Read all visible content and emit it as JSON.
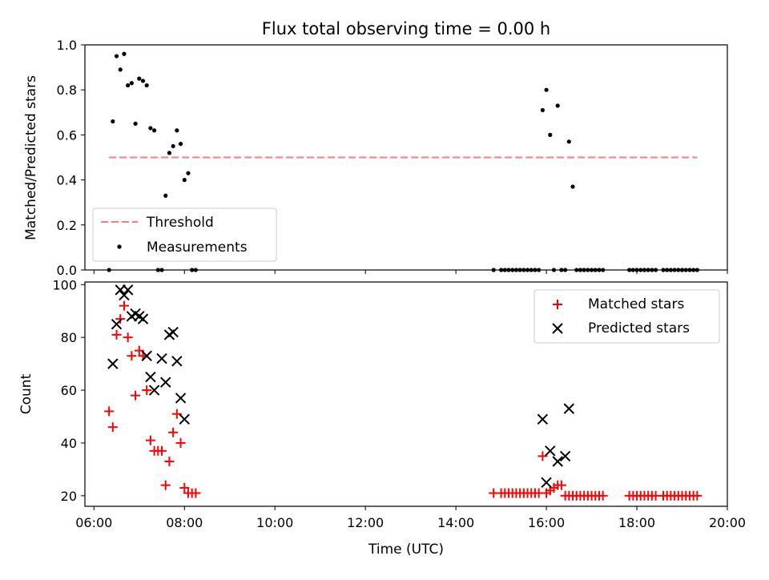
{
  "chart_data": [
    {
      "type": "scatter",
      "title": "Flux total observing time = 0.00 h",
      "xlabel": "",
      "ylabel": "Matched/Predicted stars",
      "xlim": [
        "05:48",
        "20:00"
      ],
      "ylim": [
        0,
        1.0
      ],
      "yticks": [
        "0.0",
        "0.2",
        "0.4",
        "0.6",
        "0.8",
        "1.0"
      ],
      "xticks": [
        "06:00",
        "08:00",
        "10:00",
        "12:00",
        "14:00",
        "16:00",
        "18:00",
        "20:00"
      ],
      "legend": {
        "placement": "lower-left",
        "entries": [
          "Threshold",
          "Measurements"
        ]
      },
      "threshold": {
        "name": "Threshold",
        "value": 0.5,
        "x_start": "06:20",
        "x_end": "19:20",
        "color": "#f08080"
      },
      "series": [
        {
          "name": "Measurements",
          "color": "#000000",
          "points": [
            [
              "06:20",
              0.0
            ],
            [
              "06:25",
              0.66
            ],
            [
              "06:30",
              0.95
            ],
            [
              "06:35",
              0.89
            ],
            [
              "06:40",
              0.96
            ],
            [
              "06:45",
              0.82
            ],
            [
              "06:50",
              0.83
            ],
            [
              "06:55",
              0.65
            ],
            [
              "07:00",
              0.85
            ],
            [
              "07:05",
              0.84
            ],
            [
              "07:10",
              0.82
            ],
            [
              "07:15",
              0.63
            ],
            [
              "07:20",
              0.62
            ],
            [
              "07:25",
              0.0
            ],
            [
              "07:30",
              0.0
            ],
            [
              "07:35",
              0.33
            ],
            [
              "07:40",
              0.52
            ],
            [
              "07:45",
              0.55
            ],
            [
              "07:50",
              0.62
            ],
            [
              "07:55",
              0.56
            ],
            [
              "08:00",
              0.4
            ],
            [
              "08:05",
              0.43
            ],
            [
              "08:10",
              0.0
            ],
            [
              "08:15",
              0.0
            ],
            [
              "14:50",
              0.0
            ],
            [
              "15:00",
              0.0
            ],
            [
              "15:05",
              0.0
            ],
            [
              "15:10",
              0.0
            ],
            [
              "15:15",
              0.0
            ],
            [
              "15:20",
              0.0
            ],
            [
              "15:25",
              0.0
            ],
            [
              "15:30",
              0.0
            ],
            [
              "15:35",
              0.0
            ],
            [
              "15:40",
              0.0
            ],
            [
              "15:45",
              0.0
            ],
            [
              "15:50",
              0.0
            ],
            [
              "15:55",
              0.71
            ],
            [
              "16:00",
              0.8
            ],
            [
              "16:05",
              0.6
            ],
            [
              "16:10",
              0.0
            ],
            [
              "16:15",
              0.73
            ],
            [
              "16:20",
              0.0
            ],
            [
              "16:25",
              0.0
            ],
            [
              "16:30",
              0.57
            ],
            [
              "16:35",
              0.37
            ],
            [
              "16:40",
              0.0
            ],
            [
              "16:45",
              0.0
            ],
            [
              "16:50",
              0.0
            ],
            [
              "16:55",
              0.0
            ],
            [
              "17:00",
              0.0
            ],
            [
              "17:05",
              0.0
            ],
            [
              "17:10",
              0.0
            ],
            [
              "17:15",
              0.0
            ],
            [
              "17:50",
              0.0
            ],
            [
              "17:55",
              0.0
            ],
            [
              "18:00",
              0.0
            ],
            [
              "18:05",
              0.0
            ],
            [
              "18:10",
              0.0
            ],
            [
              "18:15",
              0.0
            ],
            [
              "18:20",
              0.0
            ],
            [
              "18:25",
              0.0
            ],
            [
              "18:35",
              0.0
            ],
            [
              "18:40",
              0.0
            ],
            [
              "18:45",
              0.0
            ],
            [
              "18:50",
              0.0
            ],
            [
              "18:55",
              0.0
            ],
            [
              "19:00",
              0.0
            ],
            [
              "19:05",
              0.0
            ],
            [
              "19:10",
              0.0
            ],
            [
              "19:15",
              0.0
            ],
            [
              "19:20",
              0.0
            ]
          ]
        }
      ]
    },
    {
      "type": "scatter",
      "title": "",
      "xlabel": "Time (UTC)",
      "ylabel": "Count",
      "xlim": [
        "05:48",
        "20:00"
      ],
      "ylim": [
        16,
        101
      ],
      "yticks": [
        "20",
        "40",
        "60",
        "80",
        "100"
      ],
      "xticks": [
        "06:00",
        "08:00",
        "10:00",
        "12:00",
        "14:00",
        "16:00",
        "18:00",
        "20:00"
      ],
      "legend": {
        "placement": "top-right",
        "entries": [
          "Matched stars",
          "Predicted stars"
        ]
      },
      "series": [
        {
          "name": "Matched stars",
          "marker": "plus",
          "color": "#ff0000",
          "points": [
            [
              "06:20",
              52
            ],
            [
              "06:25",
              46
            ],
            [
              "06:30",
              81
            ],
            [
              "06:35",
              87
            ],
            [
              "06:40",
              92
            ],
            [
              "06:45",
              80
            ],
            [
              "06:50",
              73
            ],
            [
              "06:55",
              58
            ],
            [
              "07:00",
              75
            ],
            [
              "07:05",
              73
            ],
            [
              "07:10",
              60
            ],
            [
              "07:15",
              41
            ],
            [
              "07:20",
              37
            ],
            [
              "07:25",
              37
            ],
            [
              "07:30",
              37
            ],
            [
              "07:35",
              24
            ],
            [
              "07:40",
              33
            ],
            [
              "07:45",
              44
            ],
            [
              "07:50",
              51
            ],
            [
              "07:55",
              40
            ],
            [
              "08:00",
              23
            ],
            [
              "08:05",
              21
            ],
            [
              "08:10",
              21
            ],
            [
              "08:15",
              21
            ],
            [
              "14:50",
              21
            ],
            [
              "15:00",
              21
            ],
            [
              "15:05",
              21
            ],
            [
              "15:10",
              21
            ],
            [
              "15:15",
              21
            ],
            [
              "15:20",
              21
            ],
            [
              "15:25",
              21
            ],
            [
              "15:30",
              21
            ],
            [
              "15:35",
              21
            ],
            [
              "15:40",
              21
            ],
            [
              "15:45",
              21
            ],
            [
              "15:50",
              21
            ],
            [
              "15:55",
              35
            ],
            [
              "16:00",
              21
            ],
            [
              "16:05",
              22
            ],
            [
              "16:10",
              23
            ],
            [
              "16:15",
              24
            ],
            [
              "16:20",
              24
            ],
            [
              "16:25",
              20
            ],
            [
              "16:30",
              20
            ],
            [
              "16:35",
              20
            ],
            [
              "16:40",
              20
            ],
            [
              "16:45",
              20
            ],
            [
              "16:50",
              20
            ],
            [
              "16:55",
              20
            ],
            [
              "17:00",
              20
            ],
            [
              "17:05",
              20
            ],
            [
              "17:10",
              20
            ],
            [
              "17:15",
              20
            ],
            [
              "17:50",
              20
            ],
            [
              "17:55",
              20
            ],
            [
              "18:00",
              20
            ],
            [
              "18:05",
              20
            ],
            [
              "18:10",
              20
            ],
            [
              "18:15",
              20
            ],
            [
              "18:20",
              20
            ],
            [
              "18:25",
              20
            ],
            [
              "18:35",
              20
            ],
            [
              "18:40",
              20
            ],
            [
              "18:45",
              20
            ],
            [
              "18:50",
              20
            ],
            [
              "18:55",
              20
            ],
            [
              "19:00",
              20
            ],
            [
              "19:05",
              20
            ],
            [
              "19:10",
              20
            ],
            [
              "19:15",
              20
            ],
            [
              "19:20",
              20
            ]
          ]
        },
        {
          "name": "Predicted stars",
          "marker": "x",
          "color": "#000000",
          "points": [
            [
              "06:25",
              70
            ],
            [
              "06:30",
              85
            ],
            [
              "06:35",
              98
            ],
            [
              "06:40",
              96
            ],
            [
              "06:45",
              98
            ],
            [
              "06:50",
              88
            ],
            [
              "06:55",
              89
            ],
            [
              "07:00",
              88
            ],
            [
              "07:05",
              87
            ],
            [
              "07:10",
              73
            ],
            [
              "07:15",
              65
            ],
            [
              "07:20",
              60
            ],
            [
              "07:30",
              72
            ],
            [
              "07:35",
              63
            ],
            [
              "07:40",
              81
            ],
            [
              "07:45",
              82
            ],
            [
              "07:50",
              71
            ],
            [
              "07:55",
              57
            ],
            [
              "08:00",
              49
            ],
            [
              "15:55",
              49
            ],
            [
              "16:00",
              25
            ],
            [
              "16:05",
              37
            ],
            [
              "16:15",
              33
            ],
            [
              "16:25",
              35
            ],
            [
              "16:30",
              53
            ]
          ]
        }
      ]
    }
  ]
}
